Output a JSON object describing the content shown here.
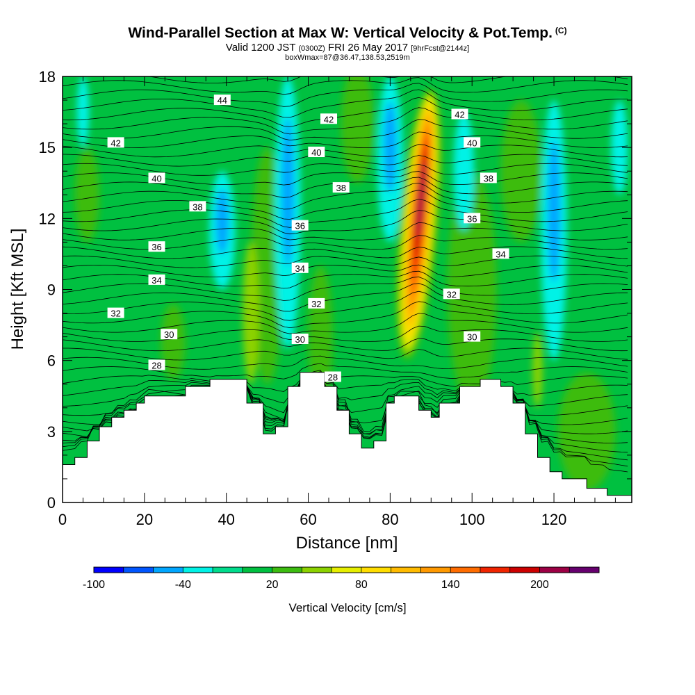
{
  "header": {
    "title": "Wind-Parallel Section at Max W: Vertical Velocity & Pot.Temp.",
    "title_mark": "(C)",
    "valid_prefix": "Valid 1200 JST",
    "valid_zulu": "(0300Z)",
    "valid_date": "FRI 26 May 2017",
    "forecast_info": "[9hrFcst@2144z]",
    "box_info": "boxWmax=87@36.47,138.53,2519m"
  },
  "chart_data": {
    "type": "heatmap",
    "xlabel": "Distance [nm]",
    "ylabel": "Height [Kft MSL]",
    "xlim": [
      0,
      139
    ],
    "ylim": [
      0,
      18
    ],
    "x_ticks": [
      "0",
      "20",
      "40",
      "60",
      "80",
      "100",
      "120"
    ],
    "y_ticks": [
      "0",
      "3",
      "6",
      "9",
      "12",
      "15",
      "18"
    ],
    "colorbar": {
      "title": "Vertical Velocity [cm/s]",
      "levels": [
        -100,
        -80,
        -60,
        -40,
        -20,
        0,
        20,
        40,
        60,
        80,
        100,
        120,
        140,
        160,
        180,
        200,
        220,
        240
      ],
      "tick_labels": [
        "-100",
        "-40",
        "20",
        "80",
        "140",
        "200"
      ],
      "colors": [
        "#0000ff",
        "#0055ff",
        "#00a6ff",
        "#00f2e6",
        "#00dc8c",
        "#00c040",
        "#3cbc10",
        "#8cd200",
        "#e6ee00",
        "#ffdd00",
        "#ffbb00",
        "#ff9900",
        "#ff6c00",
        "#f02400",
        "#cc0000",
        "#9c0044",
        "#66006e"
      ]
    },
    "theta_contour_labels": [
      {
        "text": "44",
        "x": 39,
        "y": 17.0
      },
      {
        "text": "42",
        "x": 13,
        "y": 15.2
      },
      {
        "text": "42",
        "x": 65,
        "y": 16.2
      },
      {
        "text": "42",
        "x": 97,
        "y": 16.4
      },
      {
        "text": "40",
        "x": 23,
        "y": 13.7
      },
      {
        "text": "40",
        "x": 62,
        "y": 14.8
      },
      {
        "text": "40",
        "x": 100,
        "y": 15.2
      },
      {
        "text": "38",
        "x": 33,
        "y": 12.5
      },
      {
        "text": "38",
        "x": 68,
        "y": 13.3
      },
      {
        "text": "38",
        "x": 104,
        "y": 13.7
      },
      {
        "text": "36",
        "x": 23,
        "y": 10.8
      },
      {
        "text": "36",
        "x": 58,
        "y": 11.7
      },
      {
        "text": "36",
        "x": 100,
        "y": 12.0
      },
      {
        "text": "34",
        "x": 23,
        "y": 9.4
      },
      {
        "text": "34",
        "x": 58,
        "y": 9.9
      },
      {
        "text": "34",
        "x": 107,
        "y": 10.5
      },
      {
        "text": "32",
        "x": 13,
        "y": 8.0
      },
      {
        "text": "32",
        "x": 62,
        "y": 8.4
      },
      {
        "text": "32",
        "x": 95,
        "y": 8.8
      },
      {
        "text": "30",
        "x": 26,
        "y": 7.1
      },
      {
        "text": "30",
        "x": 58,
        "y": 6.9
      },
      {
        "text": "30",
        "x": 100,
        "y": 7.0
      },
      {
        "text": "28",
        "x": 23,
        "y": 5.8
      },
      {
        "text": "28",
        "x": 66,
        "y": 5.3
      }
    ],
    "terrain_heights": [
      [
        0,
        1.6
      ],
      [
        3,
        1.9
      ],
      [
        6,
        2.6
      ],
      [
        9,
        3.2
      ],
      [
        12,
        3.6
      ],
      [
        15,
        3.9
      ],
      [
        18,
        4.2
      ],
      [
        20,
        4.5
      ],
      [
        30,
        4.9
      ],
      [
        36,
        5.2
      ],
      [
        42,
        5.2
      ],
      [
        45,
        4.2
      ],
      [
        49,
        2.9
      ],
      [
        52,
        3.2
      ],
      [
        55,
        4.9
      ],
      [
        58,
        5.5
      ],
      [
        61,
        5.5
      ],
      [
        64,
        4.9
      ],
      [
        67,
        3.9
      ],
      [
        70,
        2.9
      ],
      [
        73,
        2.3
      ],
      [
        76,
        2.6
      ],
      [
        79,
        4.2
      ],
      [
        81,
        4.5
      ],
      [
        84,
        4.5
      ],
      [
        87,
        3.9
      ],
      [
        90,
        3.6
      ],
      [
        92,
        4.2
      ],
      [
        97,
        4.9
      ],
      [
        102,
        5.2
      ],
      [
        107,
        4.9
      ],
      [
        110,
        4.2
      ],
      [
        113,
        2.9
      ],
      [
        116,
        1.9
      ],
      [
        119,
        1.3
      ],
      [
        122,
        1.0
      ],
      [
        128,
        0.6
      ],
      [
        133,
        0.3
      ],
      [
        139,
        0.3
      ]
    ],
    "updraft_core": {
      "x": 87,
      "y_range": [
        6.0,
        17.5
      ],
      "max_value_cm_s": 200
    },
    "downdrafts": [
      {
        "x": 55,
        "y_range": [
          6.5,
          18
        ]
      },
      {
        "x": 80,
        "y_range": [
          11,
          18
        ]
      },
      {
        "x": 120,
        "y_range": [
          6.0,
          17
        ]
      },
      {
        "x": 39,
        "y_range": [
          9,
          14
        ]
      }
    ]
  }
}
